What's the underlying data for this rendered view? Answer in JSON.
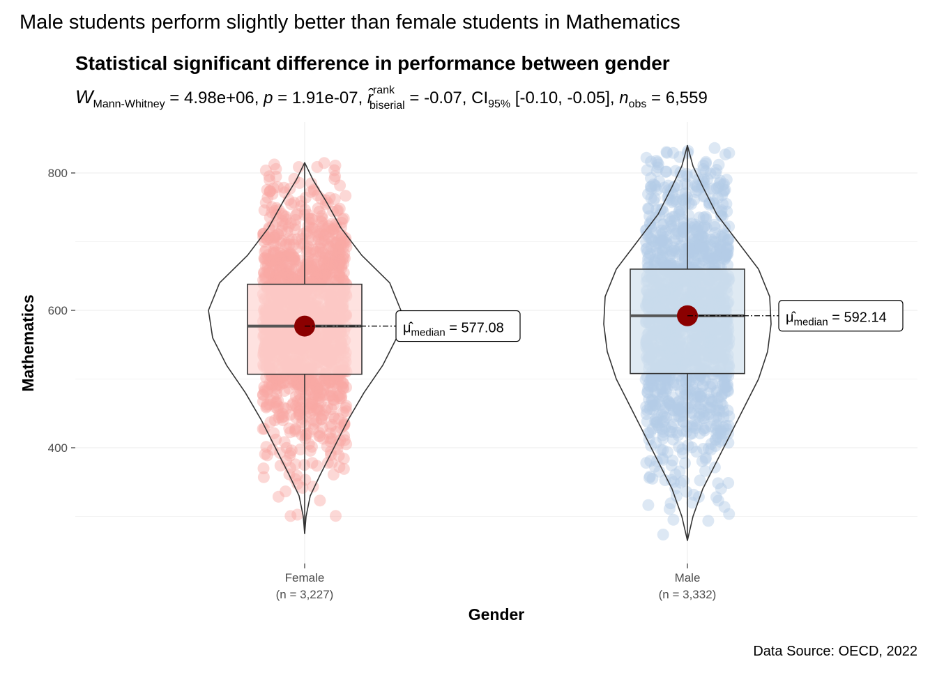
{
  "chart_data": {
    "type": "violin-box-scatter",
    "title": "Male students perform slightly better than female students in Mathematics",
    "subtitle": "Statistical significant difference in performance between gender",
    "stats": {
      "W_symbol": "W",
      "W_sub": "Mann-Whitney",
      "W_value": " = 4.98e+06, ",
      "p_symbol": "p",
      "p_value": " = 1.91e-07, ",
      "r_symbol": "r̂",
      "r_sup": "rank",
      "r_sub": "biserial",
      "r_value": " = -0.07, CI",
      "ci_sub": "95%",
      "ci_value": " [-0.10, -0.05], ",
      "n_symbol": "n",
      "n_sub": "obs",
      "n_value": " = 6,559"
    },
    "xlabel": "Gender",
    "ylabel": "Mathematics",
    "caption": "Data Source: OECD, 2022",
    "ylim": [
      225,
      850
    ],
    "yticks": [
      "400",
      "600",
      "800"
    ],
    "ytick_values": [
      400,
      600,
      800
    ],
    "groups": [
      {
        "name": "Female",
        "n_label": "(n = 3,227)",
        "color": "#f8a8a3",
        "box_fill": "#fdd5d3",
        "min": 275,
        "q1": 507,
        "median": 577.08,
        "q3": 638,
        "max": 815,
        "median_label_mu": "μ̂",
        "median_label_sub": "median",
        "median_label_value": " = 577.08"
      },
      {
        "name": "Male",
        "n_label": "(n = 3,332)",
        "color": "#b4cde6",
        "box_fill": "#d2e1ee",
        "min": 265,
        "q1": 508,
        "median": 592.14,
        "q3": 660,
        "max": 840,
        "median_label_mu": "μ̂",
        "median_label_sub": "median",
        "median_label_value": " = 592.14"
      }
    ],
    "mean_point_color": "#8b0000"
  }
}
